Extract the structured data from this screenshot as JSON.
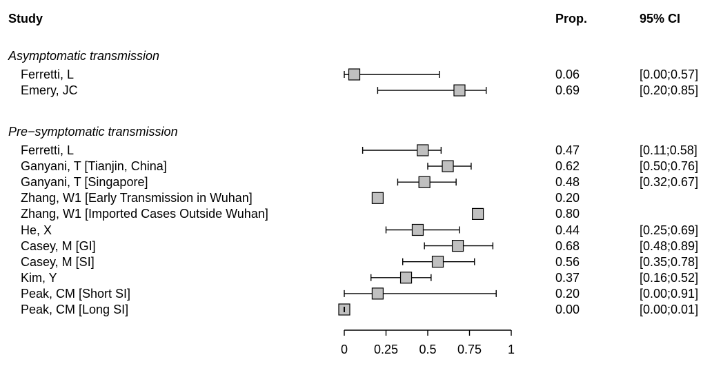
{
  "chart_data": {
    "type": "forest",
    "headers": {
      "study": "Study",
      "prop": "Prop.",
      "ci": "95% CI"
    },
    "groups": [
      {
        "label": "Asymptomatic transmission",
        "studies": [
          {
            "name": "Ferretti, L",
            "prop": 0.06,
            "lower": 0.0,
            "upper": 0.57,
            "prop_text": "0.06",
            "ci_text": "[0.00;0.57]"
          },
          {
            "name": "Emery, JC",
            "prop": 0.69,
            "lower": 0.2,
            "upper": 0.85,
            "prop_text": "0.69",
            "ci_text": "[0.20;0.85]"
          }
        ]
      },
      {
        "label": "Pre−symptomatic transmission",
        "studies": [
          {
            "name": "Ferretti, L",
            "prop": 0.47,
            "lower": 0.11,
            "upper": 0.58,
            "prop_text": "0.47",
            "ci_text": "[0.11;0.58]"
          },
          {
            "name": "Ganyani, T [Tianjin, China]",
            "prop": 0.62,
            "lower": 0.5,
            "upper": 0.76,
            "prop_text": "0.62",
            "ci_text": "[0.50;0.76]"
          },
          {
            "name": "Ganyani, T [Singapore]",
            "prop": 0.48,
            "lower": 0.32,
            "upper": 0.67,
            "prop_text": "0.48",
            "ci_text": "[0.32;0.67]"
          },
          {
            "name": "Zhang, W1 [Early Transmission in Wuhan]",
            "prop": 0.2,
            "lower": null,
            "upper": null,
            "prop_text": "0.20",
            "ci_text": ""
          },
          {
            "name": "Zhang, W1 [Imported Cases Outside Wuhan]",
            "prop": 0.8,
            "lower": null,
            "upper": null,
            "prop_text": "0.80",
            "ci_text": ""
          },
          {
            "name": "He, X",
            "prop": 0.44,
            "lower": 0.25,
            "upper": 0.69,
            "prop_text": "0.44",
            "ci_text": "[0.25;0.69]"
          },
          {
            "name": "Casey, M [GI]",
            "prop": 0.68,
            "lower": 0.48,
            "upper": 0.89,
            "prop_text": "0.68",
            "ci_text": "[0.48;0.89]"
          },
          {
            "name": "Casey, M [SI]",
            "prop": 0.56,
            "lower": 0.35,
            "upper": 0.78,
            "prop_text": "0.56",
            "ci_text": "[0.35;0.78]"
          },
          {
            "name": "Kim, Y",
            "prop": 0.37,
            "lower": 0.16,
            "upper": 0.52,
            "prop_text": "0.37",
            "ci_text": "[0.16;0.52]"
          },
          {
            "name": "Peak, CM [Short SI]",
            "prop": 0.2,
            "lower": 0.0,
            "upper": 0.91,
            "prop_text": "0.20",
            "ci_text": "[0.00;0.91]"
          },
          {
            "name": "Peak, CM [Long SI]",
            "prop": 0.0,
            "lower": 0.0,
            "upper": 0.01,
            "prop_text": "0.00",
            "ci_text": "[0.00;0.01]"
          }
        ]
      }
    ],
    "x_axis": {
      "range": [
        0,
        1
      ],
      "ticks": [
        0,
        0.25,
        0.5,
        0.75,
        1
      ],
      "tick_labels": [
        "0",
        "0.25",
        "0.5",
        "0.75",
        "1"
      ]
    },
    "colors": {
      "box_fill": "#c0c0c0",
      "stroke": "#000000"
    }
  }
}
